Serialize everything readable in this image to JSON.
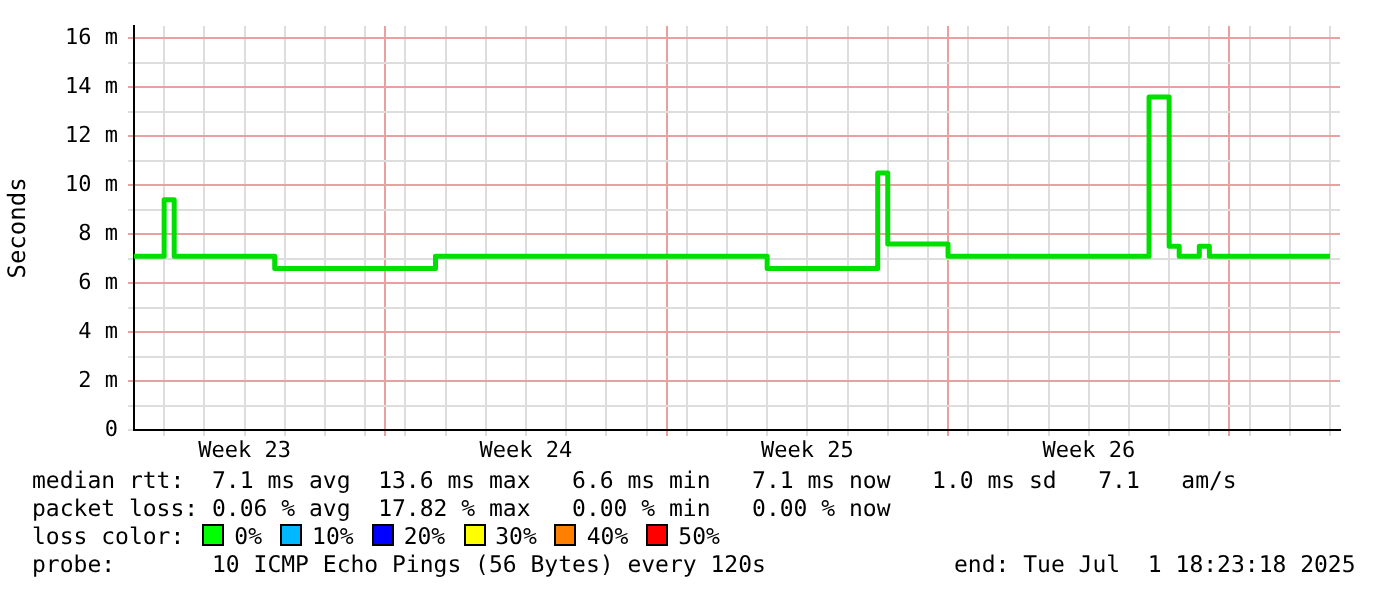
{
  "chart_data": {
    "type": "step",
    "ylabel": "Seconds",
    "categories": [
      null,
      null,
      null,
      null,
      null,
      null,
      null,
      null,
      null,
      null,
      null,
      "Week 23",
      null,
      null,
      null,
      null,
      null,
      null,
      null,
      null,
      null,
      null,
      null,
      null,
      null,
      null,
      null,
      null,
      null,
      null,
      null,
      null,
      null,
      null,
      null,
      null,
      null,
      null,
      null,
      "Week 24",
      null,
      null,
      null,
      null,
      null,
      null,
      null,
      null,
      null,
      null,
      null,
      null,
      null,
      null,
      null,
      null,
      null,
      null,
      null,
      null,
      null,
      null,
      null,
      null,
      null,
      null,
      null,
      "Week 25",
      null,
      null,
      null,
      null,
      null,
      null,
      null,
      null,
      null,
      null,
      null,
      null,
      null,
      null,
      null,
      null,
      null,
      null,
      null,
      null,
      null,
      null,
      null,
      null,
      null,
      null,
      null,
      "Week 26",
      null,
      null,
      null,
      null,
      null,
      null,
      null,
      null,
      null,
      null,
      null,
      null,
      null,
      null,
      null,
      null,
      null,
      null,
      null,
      null,
      null,
      null,
      null,
      null,
      null
    ],
    "series": [
      {
        "color": "#00e000",
        "values": [
          7.1,
          7.1,
          7.1,
          9.4,
          7.1,
          7.1,
          7.1,
          7.1,
          7.1,
          7.1,
          7.1,
          7.1,
          7.1,
          7.1,
          6.6,
          6.6,
          6.6,
          6.6,
          6.6,
          6.6,
          6.6,
          6.6,
          6.6,
          6.6,
          6.6,
          6.6,
          6.6,
          6.6,
          6.6,
          6.6,
          7.1,
          7.1,
          7.1,
          7.1,
          7.1,
          7.1,
          7.1,
          7.1,
          7.1,
          7.1,
          7.1,
          7.1,
          7.1,
          7.1,
          7.1,
          7.1,
          7.1,
          7.1,
          7.1,
          7.1,
          7.1,
          7.1,
          7.1,
          7.1,
          7.1,
          7.1,
          7.1,
          7.1,
          7.1,
          7.1,
          7.1,
          7.1,
          7.1,
          6.6,
          6.6,
          6.6,
          6.6,
          6.6,
          6.6,
          6.6,
          6.6,
          6.6,
          6.6,
          6.6,
          10.5,
          7.6,
          7.6,
          7.6,
          7.6,
          7.6,
          7.6,
          7.1,
          7.1,
          7.1,
          7.1,
          7.1,
          7.1,
          7.1,
          7.1,
          7.1,
          7.1,
          7.1,
          7.1,
          7.1,
          7.1,
          7.1,
          7.1,
          7.1,
          7.1,
          7.1,
          7.1,
          13.6,
          13.6,
          7.5,
          7.1,
          7.1,
          7.5,
          7.1,
          7.1,
          7.1,
          7.1,
          7.1,
          7.1,
          7.1,
          7.1,
          7.1,
          7.1,
          7.1,
          7.1,
          7.1,
          null
        ]
      }
    ],
    "ylim": [
      0,
      16.5
    ],
    "yticks": [
      0,
      {
        "value": 1,
        "label": null
      },
      {
        "value": 2,
        "label": "2 m"
      },
      {
        "value": 3,
        "label": null
      },
      {
        "value": 4,
        "label": "4 m"
      },
      {
        "value": 5,
        "label": null
      },
      {
        "value": 6,
        "label": "6 m"
      },
      {
        "value": 7,
        "label": null
      },
      {
        "value": 8,
        "label": "8 m"
      },
      {
        "value": 9,
        "label": null
      },
      {
        "value": 10,
        "label": "10 m"
      },
      {
        "value": 11,
        "label": null
      },
      {
        "value": 12,
        "label": "12 m"
      },
      {
        "value": 13,
        "label": null
      },
      {
        "value": 14,
        "label": "14 m"
      },
      {
        "value": 15,
        "label": null
      },
      {
        "value": 16,
        "label": "16 m"
      }
    ],
    "grid": true,
    "legend": false,
    "marker": "none",
    "line_style": "solid",
    "annotations": [
      "median rtt:  7.1 ms avg  13.6 ms max   6.6 ms min   7.1 ms now   1.0 ms sd   7.1   am/s",
      "packet loss: 0.06 % avg  17.82 % max   0.00 % min   0.00 % now",
      "loss color:",
      "0%",
      "10%",
      "20%",
      "30%",
      "40%",
      "50%",
      "probe:       10 ICMP Echo Pings (56 Bytes) every 120s",
      "end: Tue Jul  1 18:23:18 2025"
    ]
  }
}
